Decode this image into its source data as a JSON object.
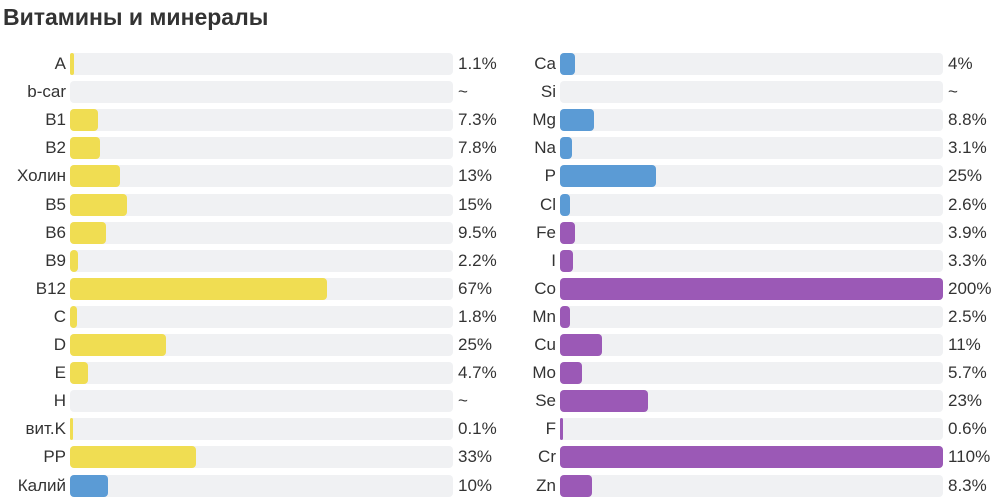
{
  "title": "Витамины и минералы",
  "colors": {
    "vitamin": "#f0dd52",
    "mineral_blue": "#5b9bd5",
    "mineral_purple": "#9b59b6",
    "track": "#f0f1f3"
  },
  "chart_data": [
    {
      "type": "bar",
      "orientation": "horizontal",
      "max_value": 100,
      "categories": [
        "A",
        "b-car",
        "B1",
        "B2",
        "Холин",
        "B5",
        "B6",
        "B9",
        "B12",
        "C",
        "D",
        "E",
        "H",
        "вит.K",
        "PP",
        "Калий"
      ],
      "values": [
        1.1,
        null,
        7.3,
        7.8,
        13,
        15,
        9.5,
        2.2,
        67,
        1.8,
        25,
        4.7,
        null,
        0.1,
        33,
        10
      ],
      "labels": [
        "1.1%",
        "~",
        "7.3%",
        "7.8%",
        "13%",
        "15%",
        "9.5%",
        "2.2%",
        "67%",
        "1.8%",
        "25%",
        "4.7%",
        "~",
        "0.1%",
        "33%",
        "10%"
      ],
      "colors": [
        "#f0dd52",
        "#f0dd52",
        "#f0dd52",
        "#f0dd52",
        "#f0dd52",
        "#f0dd52",
        "#f0dd52",
        "#f0dd52",
        "#f0dd52",
        "#f0dd52",
        "#f0dd52",
        "#f0dd52",
        "#f0dd52",
        "#f0dd52",
        "#f0dd52",
        "#5b9bd5"
      ]
    },
    {
      "type": "bar",
      "orientation": "horizontal",
      "max_value": 100,
      "categories": [
        "Ca",
        "Si",
        "Mg",
        "Na",
        "P",
        "Cl",
        "Fe",
        "I",
        "Co",
        "Mn",
        "Cu",
        "Mo",
        "Se",
        "F",
        "Cr",
        "Zn"
      ],
      "values": [
        4,
        null,
        8.8,
        3.1,
        25,
        2.6,
        3.9,
        3.3,
        200,
        2.5,
        11,
        5.7,
        23,
        0.6,
        110,
        8.3
      ],
      "labels": [
        "4%",
        "~",
        "8.8%",
        "3.1%",
        "25%",
        "2.6%",
        "3.9%",
        "3.3%",
        "200%",
        "2.5%",
        "11%",
        "5.7%",
        "23%",
        "0.6%",
        "110%",
        "8.3%"
      ],
      "colors": [
        "#5b9bd5",
        "#5b9bd5",
        "#5b9bd5",
        "#5b9bd5",
        "#5b9bd5",
        "#5b9bd5",
        "#9b59b6",
        "#9b59b6",
        "#9b59b6",
        "#9b59b6",
        "#9b59b6",
        "#9b59b6",
        "#9b59b6",
        "#9b59b6",
        "#9b59b6",
        "#9b59b6"
      ]
    }
  ]
}
